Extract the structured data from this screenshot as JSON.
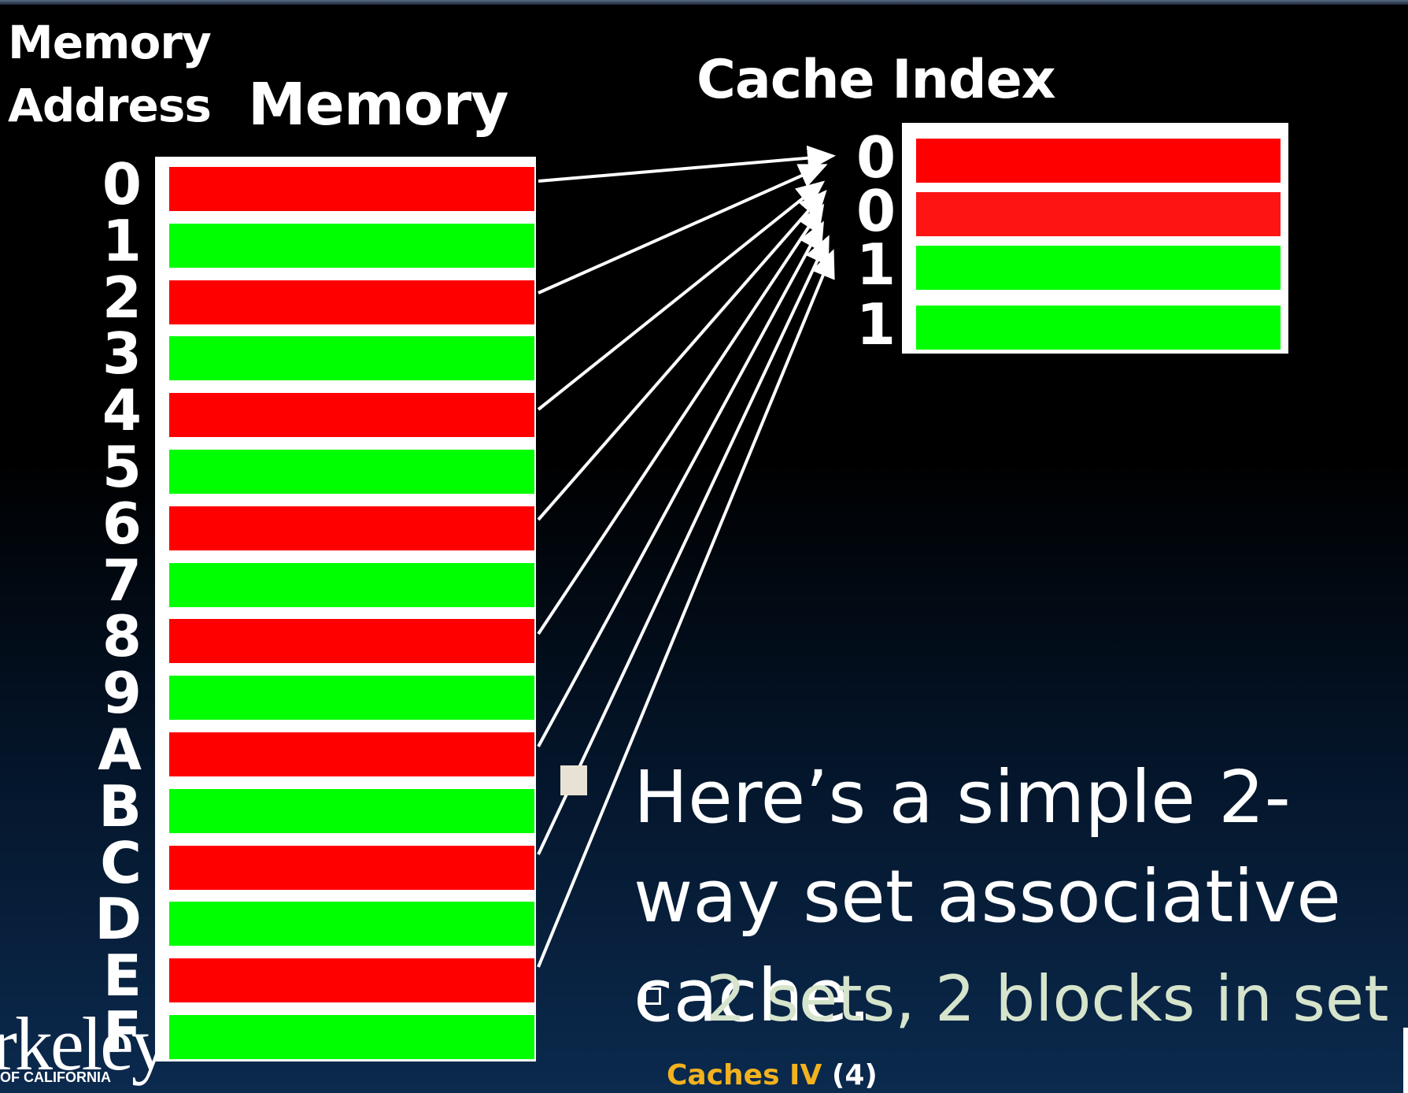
{
  "header": {
    "memory_address": "Memory\nAddress",
    "memory": "Memory",
    "cache_index": "Cache Index"
  },
  "memory": {
    "addresses": [
      "0",
      "1",
      "2",
      "3",
      "4",
      "5",
      "6",
      "7",
      "8",
      "9",
      "A",
      "B",
      "C",
      "D",
      "E",
      "F"
    ],
    "block_colors": [
      "#ff0000",
      "#00ff00",
      "#ff0000",
      "#00ff00",
      "#ff0000",
      "#00ff00",
      "#ff0000",
      "#00ff00",
      "#ff0000",
      "#00ff00",
      "#ff0000",
      "#00ff00",
      "#ff0000",
      "#00ff00",
      "#ff0000",
      "#00ff00"
    ]
  },
  "cache": {
    "indices": [
      "0",
      "0",
      "1",
      "1"
    ],
    "block_colors": [
      "#ff0000",
      "#ff1414",
      "#00ff00",
      "#00ff00"
    ]
  },
  "text": {
    "main_bullet": "Here’s a simple 2-way set associative cache.",
    "sub_bullet": "2 sets, 2 blocks in set"
  },
  "footer": {
    "title": "Caches IV",
    "number": "(4)"
  },
  "logo": {
    "text": "rkeley",
    "subtext": "OF CALIFORNIA"
  },
  "colors": {
    "red": "#ff0000",
    "green": "#00ff00",
    "accent": "#f2b21e"
  }
}
